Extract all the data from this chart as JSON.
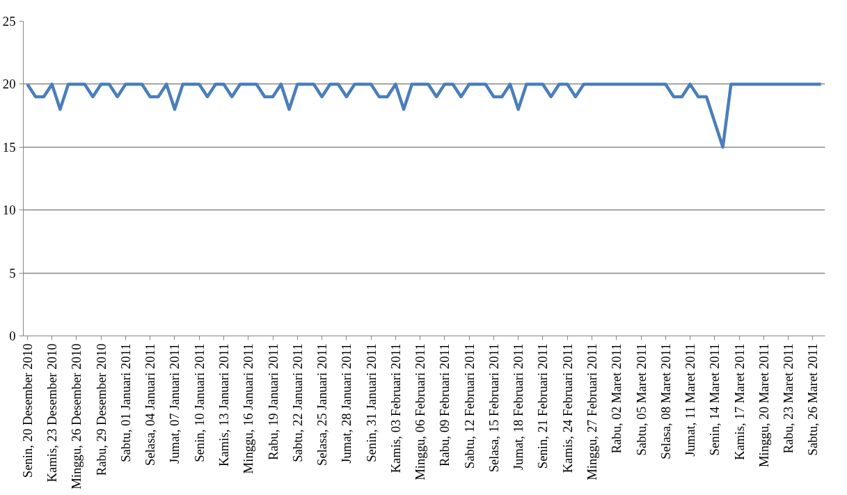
{
  "chart_data": {
    "type": "line",
    "categories": [
      "Senin, 20 Desember 2010",
      null,
      null,
      "Kamis, 23 Desember 2010",
      null,
      null,
      "Minggu, 26 Desember 2010",
      null,
      null,
      "Rabu, 29 Desember 2010",
      null,
      null,
      "Sabtu, 01 Januari 2011",
      null,
      null,
      "Selasa, 04 Januari 2011",
      null,
      null,
      "Jumat, 07 Januari 2011",
      null,
      null,
      "Senin, 10 Januari 2011",
      null,
      null,
      "Kamis, 13 Januari 2011",
      null,
      null,
      "Minggu, 16 Januari 2011",
      null,
      null,
      "Rabu, 19 Januari 2011",
      null,
      null,
      "Sabtu, 22 Januari 2011",
      null,
      null,
      "Selasa, 25 Januari 2011",
      null,
      null,
      "Jumat, 28 Januari 2011",
      null,
      null,
      "Senin, 31 Januari 2011",
      null,
      null,
      "Kamis, 03 Februari 2011",
      null,
      null,
      "Minggu, 06 Februari 2011",
      null,
      null,
      "Rabu, 09 Februari 2011",
      null,
      null,
      "Sabtu, 12 Februari 2011",
      null,
      null,
      "Selasa, 15 Februari 2011",
      null,
      null,
      "Jumat, 18 Februari 2011",
      null,
      null,
      "Senin, 21 Februari 2011",
      null,
      null,
      "Kamis, 24 Februari 2011",
      null,
      null,
      "Minggu, 27 Februari 2011",
      null,
      null,
      "Rabu, 02 Maret 2011",
      null,
      null,
      "Sabtu, 05 Maret 2011",
      null,
      null,
      "Selasa, 08 Maret 2011",
      null,
      null,
      "Jumat, 11 Maret 2011",
      null,
      null,
      "Senin, 14 Maret 2011",
      null,
      null,
      "Kamis, 17 Maret 2011",
      null,
      null,
      "Minggu, 20 Maret 2011",
      null,
      null,
      "Rabu, 23 Maret 2011",
      null,
      null,
      "Sabtu, 26 Maret 2011",
      null
    ],
    "series": [
      {
        "color": "#4a7ebb",
        "values": [
          20,
          19,
          19,
          20,
          18,
          20,
          20,
          20,
          19,
          20,
          20,
          19,
          20,
          20,
          20,
          19,
          19,
          20,
          18,
          20,
          20,
          20,
          19,
          20,
          20,
          19,
          20,
          20,
          20,
          19,
          19,
          20,
          18,
          20,
          20,
          20,
          19,
          20,
          20,
          19,
          20,
          20,
          20,
          19,
          19,
          20,
          18,
          20,
          20,
          20,
          19,
          20,
          20,
          19,
          20,
          20,
          20,
          19,
          19,
          20,
          18,
          20,
          20,
          20,
          19,
          20,
          20,
          19,
          20,
          20,
          20,
          20,
          20,
          20,
          20,
          20,
          20,
          20,
          20,
          19,
          19,
          20,
          19,
          19,
          17,
          15,
          20,
          20,
          20,
          20,
          20,
          20,
          20,
          20,
          20,
          20,
          20,
          20
        ]
      }
    ],
    "ylim": [
      0,
      25
    ],
    "yticks": [
      0,
      5,
      10,
      15,
      20,
      25
    ],
    "grid": "y",
    "marker": "none",
    "line_style": "solid"
  }
}
